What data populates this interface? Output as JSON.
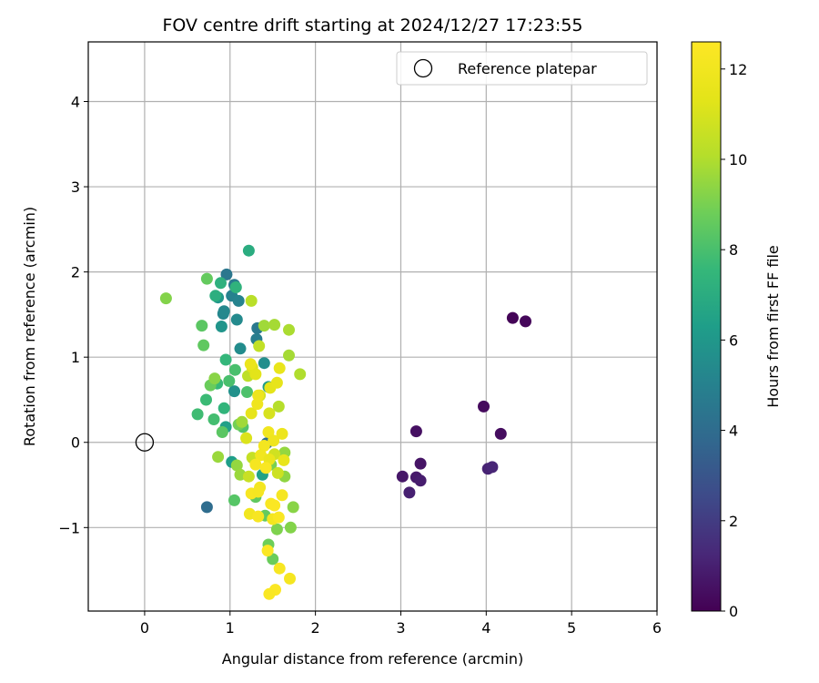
{
  "chart_data": {
    "type": "scatter",
    "title": "FOV centre drift starting at 2024/12/27 17:23:55",
    "xlabel": "Angular distance from reference (arcmin)",
    "ylabel": "Rotation from reference (arcmin)",
    "colorbar_label": "Hours from first FF file",
    "colormap": "viridis",
    "xlim": [
      -0.66,
      6.0
    ],
    "ylim": [
      -1.98,
      4.7
    ],
    "clim": [
      0,
      12.6
    ],
    "xticks": [
      0,
      1,
      2,
      3,
      4,
      5,
      6
    ],
    "yticks": [
      -1,
      0,
      1,
      2,
      3,
      4
    ],
    "colorbar_ticks": [
      0,
      2,
      4,
      6,
      8,
      10,
      12
    ],
    "grid": true,
    "legend": {
      "placement": "top-right",
      "entries": [
        "Reference platepar"
      ]
    },
    "reference_point": {
      "x": 0,
      "y": 0,
      "label": "Reference platepar"
    },
    "points": [
      {
        "x": 4.31,
        "y": 1.46,
        "hours": 0.1
      },
      {
        "x": 4.46,
        "y": 1.42,
        "hours": 0.2
      },
      {
        "x": 3.97,
        "y": 0.42,
        "hours": 0.3
      },
      {
        "x": 4.17,
        "y": 0.1,
        "hours": 0.4
      },
      {
        "x": 3.18,
        "y": 0.13,
        "hours": 0.5
      },
      {
        "x": 3.23,
        "y": -0.25,
        "hours": 0.6
      },
      {
        "x": 3.02,
        "y": -0.4,
        "hours": 0.7
      },
      {
        "x": 3.18,
        "y": -0.41,
        "hours": 0.8
      },
      {
        "x": 3.23,
        "y": -0.45,
        "hours": 0.9
      },
      {
        "x": 3.1,
        "y": -0.59,
        "hours": 1.0
      },
      {
        "x": 4.02,
        "y": -0.31,
        "hours": 1.1
      },
      {
        "x": 4.07,
        "y": -0.29,
        "hours": 1.2
      },
      {
        "x": 0.73,
        "y": -0.76,
        "hours": 4.0
      },
      {
        "x": 1.43,
        "y": -0.01,
        "hours": 4.1
      },
      {
        "x": 0.96,
        "y": 1.97,
        "hours": 4.5
      },
      {
        "x": 1.05,
        "y": 1.85,
        "hours": 4.7
      },
      {
        "x": 1.32,
        "y": 1.34,
        "hours": 4.6
      },
      {
        "x": 1.31,
        "y": 1.21,
        "hours": 4.8
      },
      {
        "x": 1.02,
        "y": 1.72,
        "hours": 5.0
      },
      {
        "x": 1.1,
        "y": 1.66,
        "hours": 5.1
      },
      {
        "x": 0.92,
        "y": 1.51,
        "hours": 5.2
      },
      {
        "x": 0.93,
        "y": 1.54,
        "hours": 5.3
      },
      {
        "x": 1.08,
        "y": 1.44,
        "hours": 5.4
      },
      {
        "x": 1.12,
        "y": 1.1,
        "hours": 5.5
      },
      {
        "x": 1.4,
        "y": 0.93,
        "hours": 5.6
      },
      {
        "x": 1.05,
        "y": 0.6,
        "hours": 5.7
      },
      {
        "x": 0.9,
        "y": 1.36,
        "hours": 5.9
      },
      {
        "x": 0.86,
        "y": 1.7,
        "hours": 6.0
      },
      {
        "x": 1.45,
        "y": 0.65,
        "hours": 6.2
      },
      {
        "x": 1.02,
        "y": -0.23,
        "hours": 6.3
      },
      {
        "x": 0.95,
        "y": 0.18,
        "hours": 6.4
      },
      {
        "x": 1.38,
        "y": -0.38,
        "hours": 6.5
      },
      {
        "x": 1.22,
        "y": 2.25,
        "hours": 7.0
      },
      {
        "x": 0.83,
        "y": 1.72,
        "hours": 7.1
      },
      {
        "x": 0.89,
        "y": 1.87,
        "hours": 7.2
      },
      {
        "x": 1.07,
        "y": 1.82,
        "hours": 7.3
      },
      {
        "x": 0.93,
        "y": 0.4,
        "hours": 7.4
      },
      {
        "x": 0.95,
        "y": 0.97,
        "hours": 7.5
      },
      {
        "x": 0.85,
        "y": 0.69,
        "hours": 7.6
      },
      {
        "x": 0.72,
        "y": 0.5,
        "hours": 7.7
      },
      {
        "x": 0.62,
        "y": 0.33,
        "hours": 7.8
      },
      {
        "x": 0.81,
        "y": 0.27,
        "hours": 7.9
      },
      {
        "x": 1.06,
        "y": 0.85,
        "hours": 8.0
      },
      {
        "x": 0.99,
        "y": 0.72,
        "hours": 8.0
      },
      {
        "x": 1.2,
        "y": 0.59,
        "hours": 8.1
      },
      {
        "x": 1.15,
        "y": 0.18,
        "hours": 8.2
      },
      {
        "x": 1.05,
        "y": -0.68,
        "hours": 8.3
      },
      {
        "x": 0.91,
        "y": 0.12,
        "hours": 8.4
      },
      {
        "x": 1.3,
        "y": -0.64,
        "hours": 8.5
      },
      {
        "x": 1.41,
        "y": -0.86,
        "hours": 8.6
      },
      {
        "x": 1.5,
        "y": -1.37,
        "hours": 8.7
      },
      {
        "x": 1.45,
        "y": -1.2,
        "hours": 8.8
      },
      {
        "x": 0.73,
        "y": 1.92,
        "hours": 8.6
      },
      {
        "x": 0.67,
        "y": 1.37,
        "hours": 8.4
      },
      {
        "x": 0.69,
        "y": 1.14,
        "hours": 8.5
      },
      {
        "x": 0.77,
        "y": 0.67,
        "hours": 8.7
      },
      {
        "x": 1.1,
        "y": 0.21,
        "hours": 8.9
      },
      {
        "x": 1.48,
        "y": -0.26,
        "hours": 9.0
      },
      {
        "x": 1.55,
        "y": -1.02,
        "hours": 9.1
      },
      {
        "x": 1.71,
        "y": -1.0,
        "hours": 9.2
      },
      {
        "x": 1.74,
        "y": -0.76,
        "hours": 9.3
      },
      {
        "x": 1.64,
        "y": -0.4,
        "hours": 9.4
      },
      {
        "x": 1.64,
        "y": -0.12,
        "hours": 9.5
      },
      {
        "x": 0.25,
        "y": 1.69,
        "hours": 9.2
      },
      {
        "x": 0.82,
        "y": 0.75,
        "hours": 9.3
      },
      {
        "x": 0.86,
        "y": -0.17,
        "hours": 9.6
      },
      {
        "x": 1.08,
        "y": -0.27,
        "hours": 9.5
      },
      {
        "x": 1.12,
        "y": -0.38,
        "hours": 9.6
      },
      {
        "x": 1.14,
        "y": 0.24,
        "hours": 9.7
      },
      {
        "x": 1.4,
        "y": 1.37,
        "hours": 9.7
      },
      {
        "x": 1.52,
        "y": 1.38,
        "hours": 9.8
      },
      {
        "x": 1.69,
        "y": 1.32,
        "hours": 9.9
      },
      {
        "x": 1.69,
        "y": 1.02,
        "hours": 9.8
      },
      {
        "x": 1.82,
        "y": 0.8,
        "hours": 10.0
      },
      {
        "x": 1.57,
        "y": 0.42,
        "hours": 10.1
      },
      {
        "x": 1.25,
        "y": 1.66,
        "hours": 10.2
      },
      {
        "x": 1.21,
        "y": 0.78,
        "hours": 10.3
      },
      {
        "x": 1.34,
        "y": 1.13,
        "hours": 10.4
      },
      {
        "x": 1.26,
        "y": -0.18,
        "hours": 10.5
      },
      {
        "x": 1.22,
        "y": -0.4,
        "hours": 10.6
      },
      {
        "x": 1.56,
        "y": -0.36,
        "hours": 10.7
      },
      {
        "x": 1.52,
        "y": -0.14,
        "hours": 10.8
      },
      {
        "x": 1.35,
        "y": 0.55,
        "hours": 10.9
      },
      {
        "x": 1.46,
        "y": 0.34,
        "hours": 11.0
      },
      {
        "x": 1.19,
        "y": 0.05,
        "hours": 11.1
      },
      {
        "x": 1.26,
        "y": 0.88,
        "hours": 11.2
      },
      {
        "x": 1.3,
        "y": 0.8,
        "hours": 11.3
      },
      {
        "x": 1.47,
        "y": 0.64,
        "hours": 11.4
      },
      {
        "x": 1.55,
        "y": 0.7,
        "hours": 11.5
      },
      {
        "x": 1.58,
        "y": 0.87,
        "hours": 11.6
      },
      {
        "x": 1.24,
        "y": 0.92,
        "hours": 11.7
      },
      {
        "x": 1.25,
        "y": 0.34,
        "hours": 11.5
      },
      {
        "x": 1.33,
        "y": 0.55,
        "hours": 11.8
      },
      {
        "x": 1.32,
        "y": 0.45,
        "hours": 11.9
      },
      {
        "x": 1.45,
        "y": 0.12,
        "hours": 12.0
      },
      {
        "x": 1.51,
        "y": 0.02,
        "hours": 11.9
      },
      {
        "x": 1.61,
        "y": 0.1,
        "hours": 11.8
      },
      {
        "x": 1.4,
        "y": -0.04,
        "hours": 12.1
      },
      {
        "x": 1.36,
        "y": -0.15,
        "hours": 12.0
      },
      {
        "x": 1.46,
        "y": -0.2,
        "hours": 11.7
      },
      {
        "x": 1.63,
        "y": -0.21,
        "hours": 11.6
      },
      {
        "x": 1.3,
        "y": -0.26,
        "hours": 12.2
      },
      {
        "x": 1.42,
        "y": -0.3,
        "hours": 12.4
      },
      {
        "x": 1.35,
        "y": -0.53,
        "hours": 12.1
      },
      {
        "x": 1.25,
        "y": -0.6,
        "hours": 12.3
      },
      {
        "x": 1.33,
        "y": -0.58,
        "hours": 12.2
      },
      {
        "x": 1.48,
        "y": -0.72,
        "hours": 12.4
      },
      {
        "x": 1.52,
        "y": -0.74,
        "hours": 12.5
      },
      {
        "x": 1.61,
        "y": -0.62,
        "hours": 12.2
      },
      {
        "x": 1.23,
        "y": -0.84,
        "hours": 12.0
      },
      {
        "x": 1.33,
        "y": -0.87,
        "hours": 12.3
      },
      {
        "x": 1.5,
        "y": -0.9,
        "hours": 12.1
      },
      {
        "x": 1.57,
        "y": -0.88,
        "hours": 12.4
      },
      {
        "x": 1.44,
        "y": -1.27,
        "hours": 12.5
      },
      {
        "x": 1.58,
        "y": -1.48,
        "hours": 12.3
      },
      {
        "x": 1.7,
        "y": -1.6,
        "hours": 12.2
      },
      {
        "x": 1.53,
        "y": -1.73,
        "hours": 12.5
      },
      {
        "x": 1.46,
        "y": -1.78,
        "hours": 12.4
      }
    ]
  }
}
